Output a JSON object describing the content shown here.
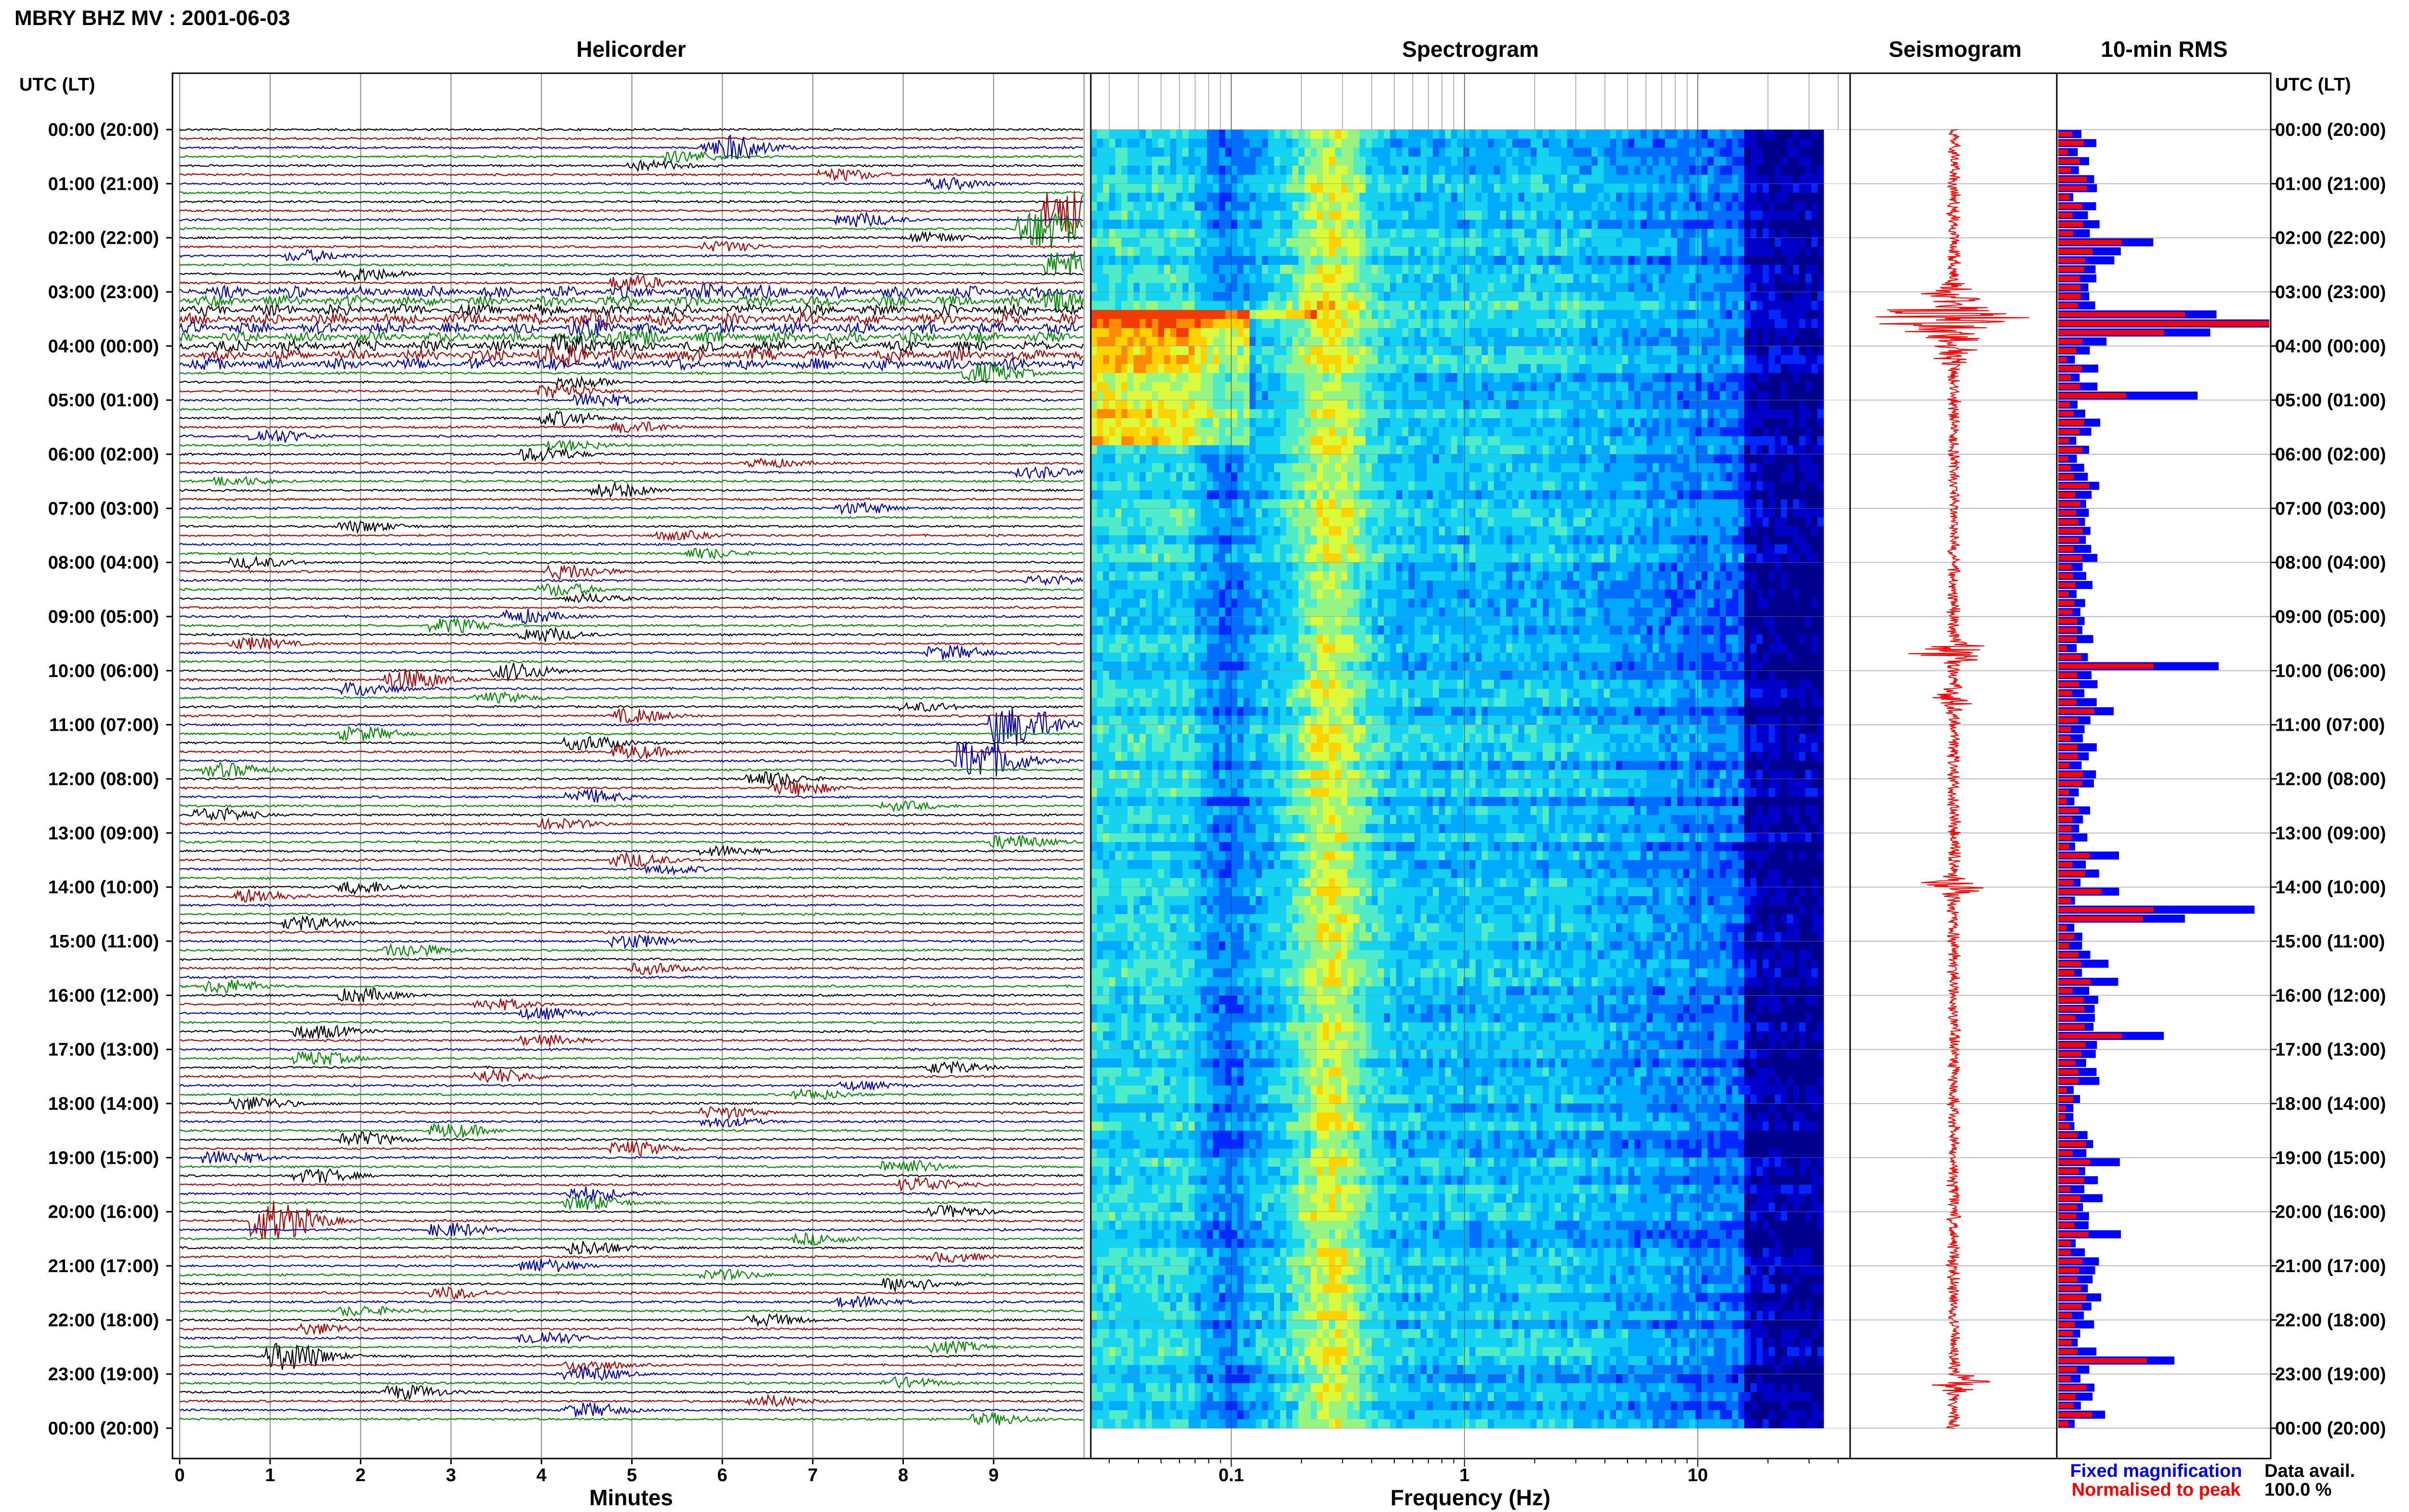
{
  "header": {
    "title": "MBRY BHZ MV : 2001-06-03"
  },
  "panels": {
    "helicorder": "Helicorder",
    "spectrogram": "Spectrogram",
    "seismogram": "Seismogram",
    "rms": "10-min RMS"
  },
  "axes": {
    "time_label": "UTC (LT)",
    "time_label_right": "UTC (LT)",
    "minutes_label": "Minutes",
    "frequency_label": "Frequency (Hz)",
    "minute_ticks": [
      "0",
      "1",
      "2",
      "3",
      "4",
      "5",
      "6",
      "7",
      "8",
      "9"
    ],
    "frequency_ticks": [
      "0.1",
      "1",
      "10"
    ]
  },
  "time_ticks": [
    "00:00 (20:00)",
    "01:00 (21:00)",
    "02:00 (22:00)",
    "03:00 (23:00)",
    "04:00 (00:00)",
    "05:00 (01:00)",
    "06:00 (02:00)",
    "07:00 (03:00)",
    "08:00 (04:00)",
    "09:00 (05:00)",
    "10:00 (06:00)",
    "11:00 (07:00)",
    "12:00 (08:00)",
    "13:00 (09:00)",
    "14:00 (10:00)",
    "15:00 (11:00)",
    "16:00 (12:00)",
    "17:00 (13:00)",
    "18:00 (14:00)",
    "19:00 (15:00)",
    "20:00 (16:00)",
    "21:00 (17:00)",
    "22:00 (18:00)",
    "23:00 (19:00)",
    "00:00 (20:00)"
  ],
  "legend": {
    "fixed": "Fixed magnification",
    "normalised": "Normalised to peak",
    "fixed_color": "#0000ff",
    "normalised_color": "#ff0000"
  },
  "availability": {
    "label": "Data avail.",
    "value": "100.0 %"
  },
  "colors": {
    "trace_cycle": [
      "#000000",
      "#b00000",
      "#0000b4",
      "#008c00"
    ],
    "seismogram": "#ff0000",
    "rms_fixed": "#0000ff",
    "rms_normalised": "#ff0000"
  },
  "chart_data": {
    "type": "helicorder",
    "hours": 24,
    "rows_per_hour": 6,
    "minutes_per_row": 10,
    "frequency_range_hz": [
      0.025,
      40
    ],
    "frequency_scale": "log",
    "events": [
      {
        "row": 2,
        "minute": 6.0,
        "amp": 1.0
      },
      {
        "row": 2,
        "minute": 6.2,
        "amp": 0.9
      },
      {
        "row": 3,
        "minute": 5.6,
        "amp": 0.8
      },
      {
        "row": 4,
        "minute": 5.2,
        "amp": 0.7
      },
      {
        "row": 5,
        "minute": 7.3,
        "amp": 0.8
      },
      {
        "row": 6,
        "minute": 8.5,
        "amp": 0.8
      },
      {
        "row": 9,
        "minute": 9.8,
        "amp": 3.5
      },
      {
        "row": 10,
        "minute": 7.5,
        "amp": 1.0
      },
      {
        "row": 11,
        "minute": 9.5,
        "amp": 3.0
      },
      {
        "row": 12,
        "minute": 8.3,
        "amp": 0.7
      },
      {
        "row": 13,
        "minute": 6.0,
        "amp": 0.7
      },
      {
        "row": 14,
        "minute": 1.4,
        "amp": 0.8
      },
      {
        "row": 15,
        "minute": 9.8,
        "amp": 2.0
      },
      {
        "row": 16,
        "minute": 2.0,
        "amp": 1.0
      },
      {
        "row": 17,
        "minute": 5.0,
        "amp": 1.0
      },
      {
        "row": 18,
        "minute": 6.0,
        "amp": 0.6
      },
      {
        "row": 19,
        "minute": 9.8,
        "amp": 1.5
      },
      {
        "row": 21,
        "minute": 4.5,
        "amp": 0.6
      },
      {
        "row": 22,
        "minute": 4.5,
        "amp": 0.7
      },
      {
        "row": 23,
        "minute": 4.8,
        "amp": 0.8
      },
      {
        "row": 24,
        "minute": 4.3,
        "amp": 0.9
      },
      {
        "row": 25,
        "minute": 4.2,
        "amp": 1.0
      },
      {
        "row": 27,
        "minute": 8.9,
        "amp": 1.5
      },
      {
        "row": 28,
        "minute": 4.4,
        "amp": 0.8
      },
      {
        "row": 29,
        "minute": 4.2,
        "amp": 1.0
      },
      {
        "row": 30,
        "minute": 4.6,
        "amp": 1.0
      },
      {
        "row": 32,
        "minute": 4.2,
        "amp": 1.0
      },
      {
        "row": 33,
        "minute": 5.0,
        "amp": 0.8
      },
      {
        "row": 34,
        "minute": 1.0,
        "amp": 1.0
      },
      {
        "row": 35,
        "minute": 4.3,
        "amp": 0.7
      },
      {
        "row": 36,
        "minute": 4.0,
        "amp": 1.0
      },
      {
        "row": 37,
        "minute": 6.5,
        "amp": 0.6
      },
      {
        "row": 38,
        "minute": 9.5,
        "amp": 0.8
      },
      {
        "row": 39,
        "minute": 0.6,
        "amp": 0.6
      },
      {
        "row": 40,
        "minute": 4.8,
        "amp": 1.0
      },
      {
        "row": 42,
        "minute": 7.5,
        "amp": 0.8
      },
      {
        "row": 44,
        "minute": 2.0,
        "amp": 0.8
      },
      {
        "row": 45,
        "minute": 5.5,
        "amp": 0.6
      },
      {
        "row": 47,
        "minute": 5.8,
        "amp": 0.7
      },
      {
        "row": 48,
        "minute": 0.8,
        "amp": 0.8
      },
      {
        "row": 49,
        "minute": 4.3,
        "amp": 1.0
      },
      {
        "row": 50,
        "minute": 9.6,
        "amp": 0.7
      },
      {
        "row": 51,
        "minute": 4.2,
        "amp": 0.9
      },
      {
        "row": 52,
        "minute": 4.5,
        "amp": 0.6
      },
      {
        "row": 54,
        "minute": 3.8,
        "amp": 1.0
      },
      {
        "row": 55,
        "minute": 3.0,
        "amp": 1.0
      },
      {
        "row": 56,
        "minute": 4.0,
        "amp": 1.0
      },
      {
        "row": 57,
        "minute": 0.8,
        "amp": 0.9
      },
      {
        "row": 58,
        "minute": 8.5,
        "amp": 1.0
      },
      {
        "row": 60,
        "minute": 3.7,
        "amp": 1.2
      },
      {
        "row": 61,
        "minute": 2.5,
        "amp": 1.5
      },
      {
        "row": 62,
        "minute": 2.0,
        "amp": 1.0
      },
      {
        "row": 63,
        "minute": 3.5,
        "amp": 0.7
      },
      {
        "row": 64,
        "minute": 8.2,
        "amp": 0.6
      },
      {
        "row": 65,
        "minute": 5.0,
        "amp": 1.0
      },
      {
        "row": 66,
        "minute": 9.2,
        "amp": 3.0
      },
      {
        "row": 67,
        "minute": 2.0,
        "amp": 1.0
      },
      {
        "row": 68,
        "minute": 4.5,
        "amp": 1.0
      },
      {
        "row": 69,
        "minute": 5.0,
        "amp": 1.0
      },
      {
        "row": 70,
        "minute": 8.8,
        "amp": 3.0
      },
      {
        "row": 71,
        "minute": 0.5,
        "amp": 1.0
      },
      {
        "row": 72,
        "minute": 6.5,
        "amp": 1.0
      },
      {
        "row": 73,
        "minute": 6.8,
        "amp": 1.0
      },
      {
        "row": 74,
        "minute": 4.5,
        "amp": 1.0
      },
      {
        "row": 75,
        "minute": 8.0,
        "amp": 0.6
      },
      {
        "row": 76,
        "minute": 0.4,
        "amp": 1.0
      },
      {
        "row": 77,
        "minute": 4.2,
        "amp": 0.7
      },
      {
        "row": 79,
        "minute": 9.2,
        "amp": 1.0
      },
      {
        "row": 80,
        "minute": 6.0,
        "amp": 0.7
      },
      {
        "row": 81,
        "minute": 5.0,
        "amp": 1.0
      },
      {
        "row": 82,
        "minute": 5.4,
        "amp": 0.6
      },
      {
        "row": 84,
        "minute": 2.0,
        "amp": 0.9
      },
      {
        "row": 85,
        "minute": 0.8,
        "amp": 1.0
      },
      {
        "row": 88,
        "minute": 1.4,
        "amp": 1.0
      },
      {
        "row": 90,
        "minute": 5.0,
        "amp": 1.0
      },
      {
        "row": 91,
        "minute": 2.5,
        "amp": 1.0
      },
      {
        "row": 93,
        "minute": 5.2,
        "amp": 0.8
      },
      {
        "row": 95,
        "minute": 0.5,
        "amp": 1.0
      },
      {
        "row": 96,
        "minute": 2.0,
        "amp": 1.0
      },
      {
        "row": 97,
        "minute": 3.5,
        "amp": 0.8
      },
      {
        "row": 98,
        "minute": 4.0,
        "amp": 0.8
      },
      {
        "row": 100,
        "minute": 1.5,
        "amp": 1.0
      },
      {
        "row": 101,
        "minute": 4.0,
        "amp": 0.8
      },
      {
        "row": 103,
        "minute": 1.5,
        "amp": 1.0
      },
      {
        "row": 104,
        "minute": 8.5,
        "amp": 0.8
      },
      {
        "row": 105,
        "minute": 3.5,
        "amp": 1.0
      },
      {
        "row": 106,
        "minute": 7.5,
        "amp": 0.6
      },
      {
        "row": 107,
        "minute": 7.0,
        "amp": 0.7
      },
      {
        "row": 108,
        "minute": 0.8,
        "amp": 1.0
      },
      {
        "row": 109,
        "minute": 6.0,
        "amp": 0.8
      },
      {
        "row": 110,
        "minute": 6.0,
        "amp": 0.7
      },
      {
        "row": 111,
        "minute": 3.0,
        "amp": 1.0
      },
      {
        "row": 112,
        "minute": 2.0,
        "amp": 1.0
      },
      {
        "row": 113,
        "minute": 5.0,
        "amp": 1.0
      },
      {
        "row": 114,
        "minute": 0.5,
        "amp": 1.0
      },
      {
        "row": 115,
        "minute": 8.0,
        "amp": 1.0
      },
      {
        "row": 116,
        "minute": 1.5,
        "amp": 1.0
      },
      {
        "row": 117,
        "minute": 8.2,
        "amp": 1.0
      },
      {
        "row": 118,
        "minute": 4.5,
        "amp": 1.0
      },
      {
        "row": 119,
        "minute": 4.5,
        "amp": 1.0
      },
      {
        "row": 120,
        "minute": 8.5,
        "amp": 0.8
      },
      {
        "row": 121,
        "minute": 1.0,
        "amp": 3.0
      },
      {
        "row": 122,
        "minute": 3.0,
        "amp": 1.0
      },
      {
        "row": 123,
        "minute": 7.0,
        "amp": 0.8
      },
      {
        "row": 124,
        "minute": 4.5,
        "amp": 1.0
      },
      {
        "row": 125,
        "minute": 8.5,
        "amp": 0.7
      },
      {
        "row": 126,
        "minute": 4.0,
        "amp": 1.0
      },
      {
        "row": 127,
        "minute": 6.0,
        "amp": 0.7
      },
      {
        "row": 128,
        "minute": 8.0,
        "amp": 1.0
      },
      {
        "row": 129,
        "minute": 3.0,
        "amp": 0.8
      },
      {
        "row": 130,
        "minute": 7.5,
        "amp": 0.8
      },
      {
        "row": 131,
        "minute": 2.0,
        "amp": 0.7
      },
      {
        "row": 132,
        "minute": 6.5,
        "amp": 0.8
      },
      {
        "row": 133,
        "minute": 1.5,
        "amp": 0.8
      },
      {
        "row": 134,
        "minute": 4.0,
        "amp": 1.0
      },
      {
        "row": 135,
        "minute": 8.5,
        "amp": 0.8
      },
      {
        "row": 136,
        "minute": 1.2,
        "amp": 2.0
      },
      {
        "row": 137,
        "minute": 4.5,
        "amp": 0.8
      },
      {
        "row": 138,
        "minute": 4.5,
        "amp": 1.0
      },
      {
        "row": 139,
        "minute": 8.0,
        "amp": 0.8
      },
      {
        "row": 140,
        "minute": 2.5,
        "amp": 1.0
      },
      {
        "row": 141,
        "minute": 6.5,
        "amp": 0.8
      },
      {
        "row": 142,
        "minute": 4.5,
        "amp": 1.0
      },
      {
        "row": 143,
        "minute": 9.0,
        "amp": 0.8
      }
    ],
    "noisy_rows": [
      18,
      19,
      20,
      21,
      22,
      23,
      24,
      25,
      26
    ],
    "seismogram_bursts": [
      {
        "row": 18,
        "amp": 0.5
      },
      {
        "row": 20,
        "amp": 0.8
      },
      {
        "row": 21,
        "amp": 1.0
      },
      {
        "row": 22,
        "amp": 0.6
      },
      {
        "row": 58,
        "amp": 0.8
      },
      {
        "row": 63,
        "amp": 0.4
      },
      {
        "row": 84,
        "amp": 0.7
      },
      {
        "row": 139,
        "amp": 0.5
      }
    ],
    "rms_peak_rows": [
      {
        "row": 21,
        "fixed": 1.0,
        "normalised": 1.0
      },
      {
        "row": 20,
        "fixed": 0.75,
        "normalised": 0.6
      },
      {
        "row": 22,
        "fixed": 0.72,
        "normalised": 0.5
      },
      {
        "row": 12,
        "fixed": 0.45,
        "normalised": 0.3
      },
      {
        "row": 59,
        "fixed": 0.76,
        "normalised": 0.45
      },
      {
        "row": 86,
        "fixed": 0.93,
        "normalised": 0.45
      },
      {
        "row": 87,
        "fixed": 0.6,
        "normalised": 0.4
      },
      {
        "row": 136,
        "fixed": 0.55,
        "normalised": 0.42
      },
      {
        "row": 29,
        "fixed": 0.66,
        "normalised": 0.32
      },
      {
        "row": 100,
        "fixed": 0.5,
        "normalised": 0.3
      }
    ]
  }
}
